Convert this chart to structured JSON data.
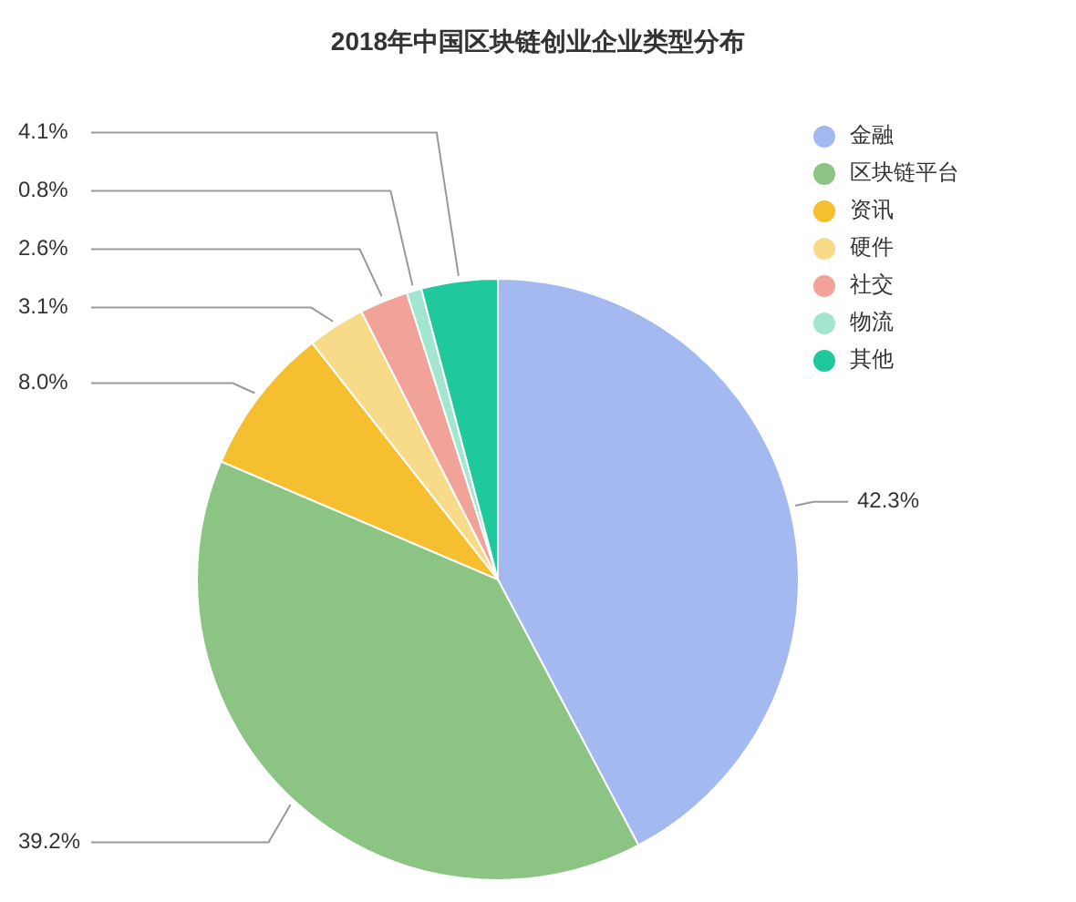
{
  "chart_data": {
    "type": "pie",
    "title": "2018年中国区块链创业企业类型分布",
    "categories": [
      "金融",
      "区块链平台",
      "资讯",
      "硬件",
      "社交",
      "物流",
      "其他"
    ],
    "values": [
      42.3,
      39.2,
      8.0,
      3.1,
      2.6,
      0.8,
      4.1
    ],
    "colors": [
      "#a4b9f0",
      "#8cc484",
      "#f6bf2f",
      "#f8db88",
      "#f1a39a",
      "#a2e6cf",
      "#1fc89d"
    ],
    "value_labels": [
      "42.3%",
      "39.2%",
      "8.0%",
      "3.1%",
      "2.6%",
      "0.8%",
      "4.1%"
    ],
    "legend": "top right"
  }
}
